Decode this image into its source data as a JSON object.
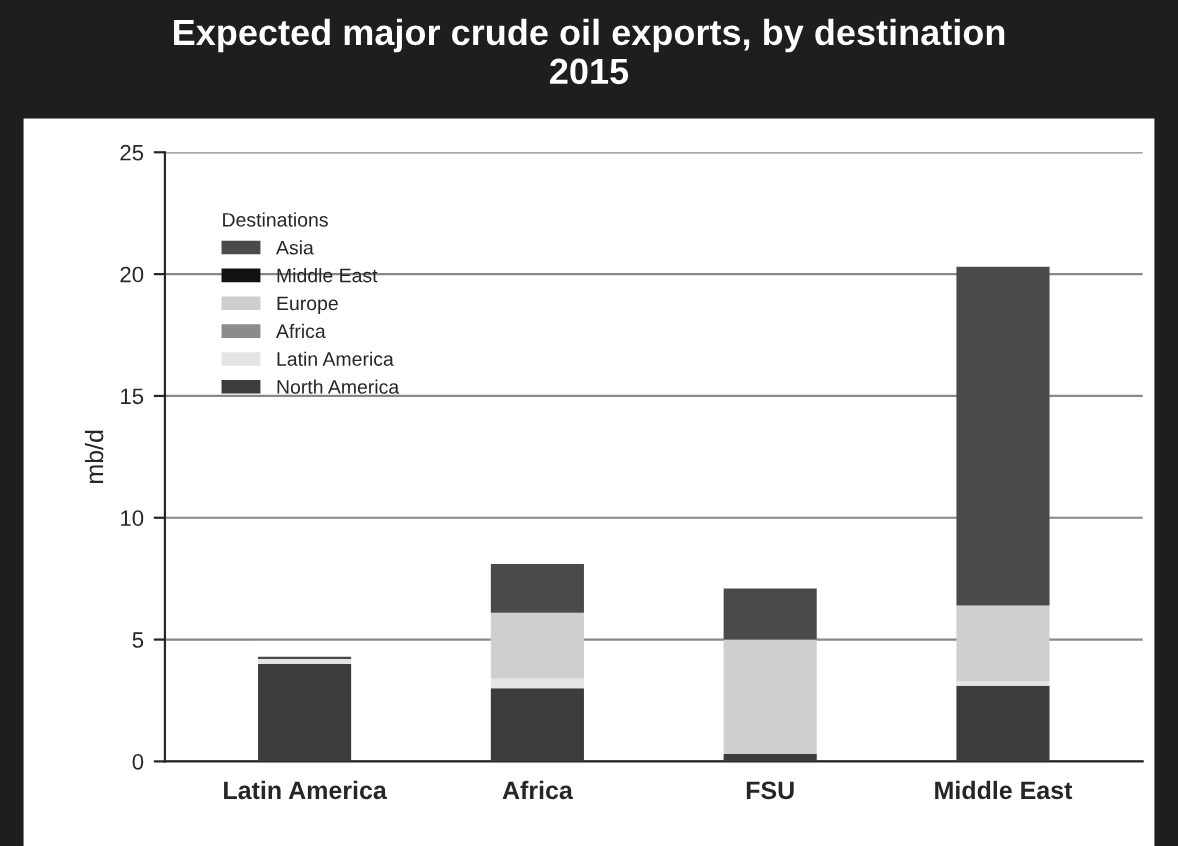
{
  "chart_data": {
    "type": "bar",
    "title": "Expected major crude oil exports, by destination\n2015",
    "ylabel": "mb/d",
    "legend_title": "Destinations",
    "categories": [
      "Latin America",
      "Africa",
      "FSU",
      "Middle East"
    ],
    "stacked": true,
    "series": [
      {
        "name": "North America",
        "color": "#3c3c3c",
        "values": [
          4.0,
          3.0,
          0.3,
          3.1
        ]
      },
      {
        "name": "Latin America",
        "color": "#e4e4e4",
        "values": [
          0.2,
          0.4,
          0.0,
          0.2
        ]
      },
      {
        "name": "Africa",
        "color": "#8c8c8c",
        "values": [
          0,
          0,
          0,
          0
        ]
      },
      {
        "name": "Europe",
        "color": "#cfcfcf",
        "values": [
          0,
          2.7,
          4.7,
          3.1
        ]
      },
      {
        "name": "Middle East",
        "color": "#111111",
        "values": [
          0,
          0,
          0,
          0
        ]
      },
      {
        "name": "Asia",
        "color": "#4a4a4a",
        "values": [
          0.1,
          2.0,
          2.1,
          13.9
        ]
      }
    ],
    "ylim": [
      0,
      25
    ],
    "yticks": [
      0,
      5,
      10,
      15,
      20,
      25
    ],
    "grid": "y",
    "legend": "top left"
  }
}
